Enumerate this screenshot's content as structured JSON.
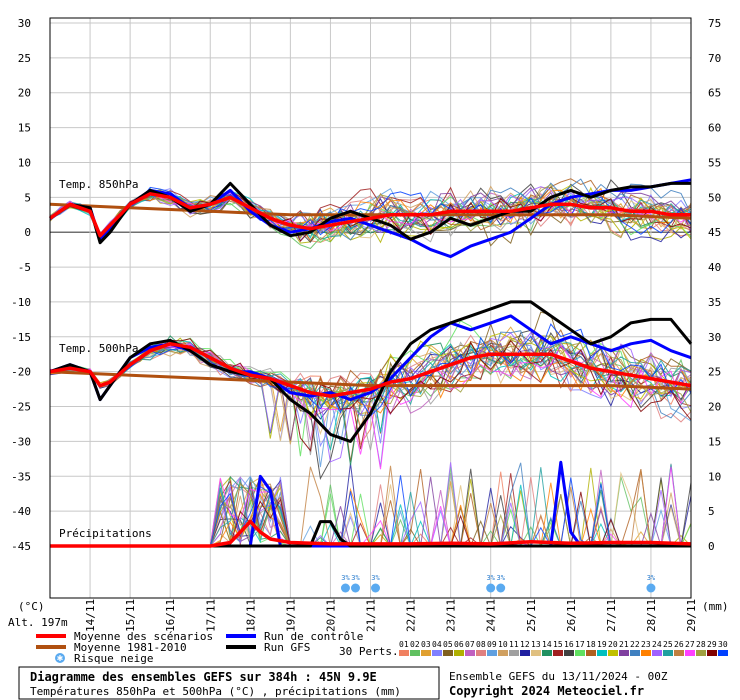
{
  "chart_data": {
    "type": "line",
    "title": "Diagramme des ensembles GEFS sur 384h : 45N 9.9E",
    "subtitle": "Températures 850hPa et 500hPa (°C) , précipitations (mm)",
    "left_axis_unit": "(°C)",
    "right_axis_unit": "(mm)",
    "altitude_label": "Alt. 197m",
    "ylim_left": [
      -45,
      30
    ],
    "ylim_right": [
      0,
      75
    ],
    "yticks_left": [
      30,
      25,
      20,
      15,
      10,
      5,
      0,
      -5,
      -10,
      -15,
      -20,
      -25,
      -30,
      -35,
      -40,
      -45
    ],
    "yticks_right": [
      75,
      70,
      65,
      60,
      55,
      50,
      45,
      40,
      35,
      30,
      25,
      20,
      15,
      10,
      5,
      0
    ],
    "x_range_hours": [
      0,
      384
    ],
    "x_tick_labels": [
      "14/11",
      "15/11",
      "16/11",
      "17/11",
      "18/11",
      "19/11",
      "20/11",
      "21/11",
      "22/11",
      "23/11",
      "24/11",
      "25/11",
      "26/11",
      "27/11",
      "28/11",
      "29/11"
    ],
    "section_labels": {
      "t850": "Temp. 850hPa",
      "t500": "Temp. 500hPa",
      "precip": "Précipitations"
    },
    "legend": {
      "mean": "Moyenne des scénarios",
      "climo": "Moyenne 1981-2010",
      "snow": "Risque neige",
      "control": "Run de contrôle",
      "gfs": "Run GFS",
      "perts": "30 Perts."
    },
    "perturbation_labels": [
      "01",
      "02",
      "03",
      "04",
      "05",
      "06",
      "07",
      "08",
      "09",
      "10",
      "11",
      "12",
      "13",
      "14",
      "15",
      "16",
      "17",
      "18",
      "19",
      "20",
      "21",
      "22",
      "23",
      "24",
      "25",
      "26",
      "27",
      "28",
      "29",
      "30"
    ],
    "perturbation_colors": [
      "#f08060",
      "#60c060",
      "#e0a030",
      "#8080ff",
      "#806020",
      "#b0b000",
      "#c060c0",
      "#e08080",
      "#60a0e0",
      "#d0a060",
      "#a0a0a0",
      "#2020a0",
      "#e0c080",
      "#209060",
      "#a02020",
      "#404040",
      "#60e060",
      "#b06020",
      "#00c0c0",
      "#c0c000",
      "#8040a0",
      "#4080c0",
      "#ff8000",
      "#a060ff",
      "#20a0a0",
      "#c08040",
      "#ff40ff",
      "#a0a040",
      "#800000",
      "#0040ff"
    ],
    "colors": {
      "mean": "#ff0000",
      "climo": "#b05010",
      "control": "#0000ff",
      "gfs": "#000000"
    },
    "series": [
      {
        "name": "Moyenne des scénarios",
        "level": "850hPa",
        "x": [
          0,
          12,
          24,
          30,
          36,
          48,
          60,
          72,
          84,
          96,
          108,
          120,
          132,
          144,
          156,
          168,
          180,
          192,
          204,
          216,
          228,
          240,
          252,
          264,
          276,
          288,
          300,
          312,
          324,
          336,
          348,
          360,
          372,
          384
        ],
        "values": [
          2,
          4,
          3,
          -0.5,
          1,
          4,
          5.5,
          5,
          3.5,
          4,
          5,
          3.5,
          2,
          1,
          0.5,
          1,
          1.5,
          2,
          2.5,
          2.5,
          2.5,
          3,
          3,
          3,
          3,
          3.5,
          4,
          4,
          3.5,
          3.5,
          3,
          3,
          2.5,
          2.5
        ]
      },
      {
        "name": "Moyenne 1981-2010",
        "level": "850hPa",
        "x": [
          0,
          48,
          96,
          144,
          192,
          240,
          288,
          336,
          384
        ],
        "values": [
          4,
          3.5,
          3,
          2.5,
          2.5,
          2.5,
          2.5,
          2.5,
          2
        ]
      },
      {
        "name": "Run de contrôle",
        "level": "850hPa",
        "x": [
          0,
          12,
          24,
          30,
          36,
          48,
          60,
          72,
          84,
          96,
          108,
          120,
          132,
          144,
          156,
          168,
          180,
          192,
          204,
          216,
          228,
          240,
          252,
          264,
          276,
          288,
          300,
          312,
          324,
          336,
          348,
          360,
          372,
          384
        ],
        "values": [
          2,
          4,
          3.5,
          -1,
          0.5,
          4,
          6,
          5.5,
          3.5,
          4,
          6,
          3,
          1,
          0,
          0.5,
          1.5,
          2,
          1,
          0,
          -1,
          -2.5,
          -3.5,
          -2,
          -1,
          0,
          2,
          4,
          5,
          5.5,
          6,
          6,
          6.5,
          7,
          7.5
        ]
      },
      {
        "name": "Run GFS",
        "level": "850hPa",
        "x": [
          0,
          12,
          24,
          30,
          36,
          48,
          60,
          72,
          84,
          96,
          108,
          120,
          132,
          144,
          156,
          168,
          180,
          192,
          204,
          216,
          228,
          240,
          252,
          264,
          276,
          288,
          300,
          312,
          324,
          336,
          348,
          360,
          372,
          384
        ],
        "values": [
          2,
          4,
          3.5,
          -1.5,
          0,
          4,
          6,
          5,
          3,
          4,
          7,
          4,
          1,
          -0.5,
          0,
          2,
          3,
          2,
          1,
          -1,
          0,
          2,
          1,
          2,
          3,
          3,
          5,
          6,
          5,
          6,
          6.5,
          6.5,
          7,
          7
        ]
      },
      {
        "name": "Moyenne des scénarios",
        "level": "500hPa",
        "x": [
          0,
          12,
          24,
          30,
          36,
          48,
          60,
          72,
          84,
          96,
          108,
          120,
          132,
          144,
          156,
          168,
          180,
          192,
          204,
          216,
          228,
          240,
          252,
          264,
          276,
          288,
          300,
          312,
          324,
          336,
          348,
          360,
          372,
          384
        ],
        "values": [
          -20,
          -19.5,
          -20,
          -22,
          -21.5,
          -19,
          -17,
          -16,
          -16.5,
          -18,
          -19.5,
          -20.5,
          -21,
          -22,
          -23,
          -23.5,
          -23,
          -22.5,
          -21.5,
          -21,
          -20,
          -19,
          -18,
          -17.5,
          -17.5,
          -17.5,
          -17.5,
          -18.5,
          -19.5,
          -20,
          -20.5,
          -21,
          -21.5,
          -22
        ]
      },
      {
        "name": "Moyenne 1981-2010",
        "level": "500hPa",
        "x": [
          0,
          48,
          96,
          144,
          192,
          240,
          288,
          336,
          384
        ],
        "values": [
          -20,
          -20.5,
          -21,
          -21.5,
          -22,
          -22,
          -22,
          -22,
          -22.5
        ]
      },
      {
        "name": "Run de contrôle",
        "level": "500hPa",
        "x": [
          0,
          12,
          24,
          30,
          36,
          48,
          60,
          72,
          84,
          96,
          108,
          120,
          132,
          144,
          156,
          168,
          180,
          192,
          204,
          216,
          228,
          240,
          252,
          264,
          276,
          288,
          300,
          312,
          324,
          336,
          348,
          360,
          372,
          384
        ],
        "values": [
          -20,
          -19,
          -20,
          -24,
          -22,
          -18,
          -16.5,
          -16,
          -17,
          -19,
          -20,
          -20,
          -21,
          -23,
          -23.5,
          -23,
          -24,
          -23,
          -21,
          -18,
          -15,
          -13,
          -14,
          -13,
          -12,
          -14,
          -16,
          -15,
          -16,
          -17,
          -16,
          -15.5,
          -17,
          -18
        ]
      },
      {
        "name": "Run GFS",
        "level": "500hPa",
        "x": [
          0,
          12,
          24,
          30,
          36,
          48,
          60,
          72,
          84,
          96,
          108,
          120,
          132,
          144,
          156,
          168,
          180,
          192,
          204,
          216,
          228,
          240,
          252,
          264,
          276,
          288,
          300,
          312,
          324,
          336,
          348,
          360,
          372,
          384
        ],
        "values": [
          -20,
          -19,
          -20,
          -24,
          -22,
          -18,
          -16,
          -15.5,
          -17,
          -19,
          -20,
          -20.5,
          -21,
          -24,
          -26,
          -29,
          -30,
          -26,
          -20,
          -16,
          -14,
          -13,
          -12,
          -11,
          -10,
          -10,
          -12,
          -14,
          -16,
          -15,
          -13,
          -12.5,
          -12.5,
          -16
        ]
      },
      {
        "name": "Moyenne des scénarios",
        "level": "precip",
        "x": [
          0,
          96,
          108,
          114,
          120,
          126,
          132,
          144,
          168,
          192,
          216,
          240,
          264,
          288,
          312,
          336,
          360,
          384
        ],
        "values": [
          0,
          0,
          0.5,
          2,
          3.5,
          2,
          1,
          0.5,
          0.3,
          0.3,
          0.3,
          0.4,
          0.3,
          0.6,
          0.4,
          0.5,
          0.5,
          0.3
        ]
      },
      {
        "name": "Run GFS",
        "level": "precip",
        "x": [
          0,
          156,
          162,
          168,
          174,
          180,
          192,
          384
        ],
        "values": [
          0,
          0,
          3.5,
          3.5,
          1,
          0,
          0,
          0
        ]
      },
      {
        "name": "Run de contrôle",
        "level": "precip",
        "x": [
          0,
          120,
          126,
          132,
          138,
          300,
          306,
          312,
          318,
          384
        ],
        "values": [
          0,
          0,
          10,
          8,
          0,
          0,
          12,
          2,
          0,
          0
        ]
      }
    ],
    "snow_risk_hours": [
      177,
      183,
      195,
      264,
      270,
      360
    ]
  },
  "footer": {
    "ensemble": "Ensemble GEFS du 13/11/2024 - 00Z",
    "copyright": "Copyright 2024 Meteociel.fr"
  }
}
